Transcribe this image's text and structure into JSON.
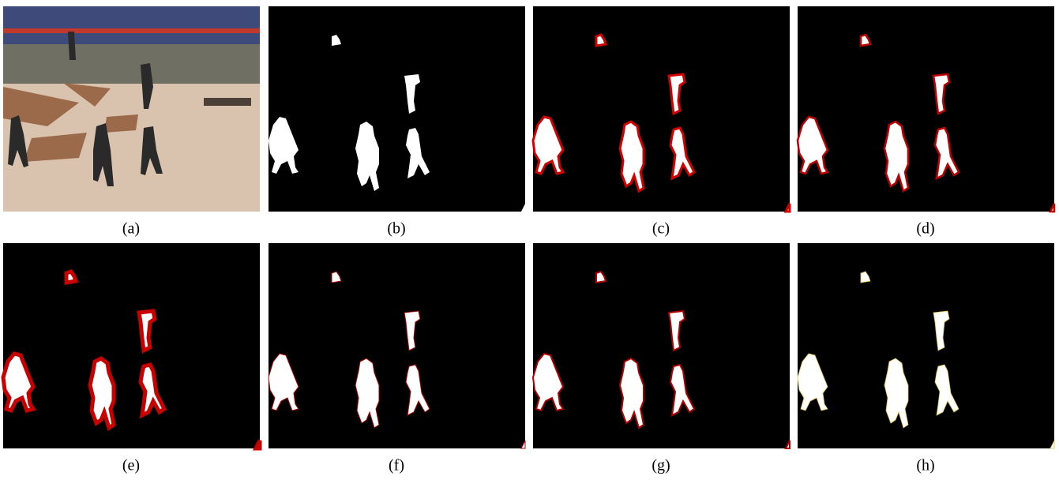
{
  "figure": {
    "captions": [
      "(a)",
      "(b)",
      "(c)",
      "(d)",
      "(e)",
      "(f)",
      "(g)",
      "(h)"
    ]
  }
}
